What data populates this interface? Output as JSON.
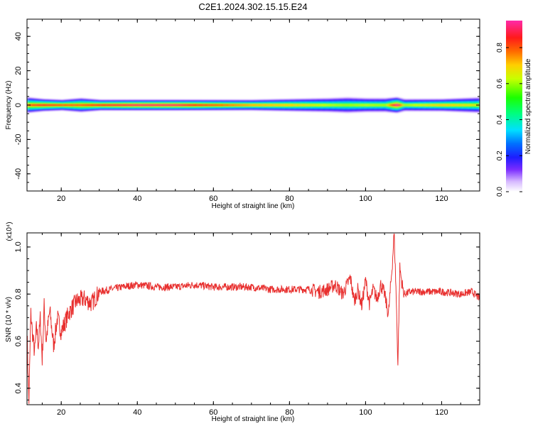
{
  "title": "C2E1.2024.302.15.15.E24",
  "colors": {
    "snr_line": "#e8302f",
    "axis": "#000000"
  },
  "chart_data": [
    {
      "type": "heatmap",
      "title": "C2E1.2024.302.15.15.E24",
      "xlabel": "Height of straight line (km)",
      "ylabel": "Frequency (Hz)",
      "xlim": [
        11,
        130
      ],
      "ylim": [
        -50,
        50
      ],
      "x_ticks": [
        "20",
        "40",
        "60",
        "80",
        "100",
        "120"
      ],
      "x_tick_values": [
        20,
        40,
        60,
        80,
        100,
        120
      ],
      "y_ticks": [
        "40",
        "20",
        "0",
        "-20",
        "-40"
      ],
      "y_tick_values": [
        40,
        20,
        0,
        -20,
        -40
      ],
      "colorbar": {
        "label": "Normalized spectral amplitude",
        "range": [
          0,
          0.95
        ],
        "ticks": [
          "0.0",
          "0.2",
          "0.4",
          "0.6",
          "0.8"
        ],
        "tick_values": [
          0.0,
          0.2,
          0.4,
          0.6,
          0.8
        ],
        "colormap": "rainbow (white-violet-blue-cyan-green-yellow-orange-red-magenta)"
      },
      "band": {
        "center_frequency": 0,
        "halfwidth_hz": [
          [
            11,
            5
          ],
          [
            15,
            4
          ],
          [
            20,
            3.5
          ],
          [
            25,
            4.5
          ],
          [
            30,
            3.5
          ],
          [
            40,
            3.5
          ],
          [
            50,
            3.5
          ],
          [
            60,
            3.5
          ],
          [
            70,
            3.5
          ],
          [
            80,
            4
          ],
          [
            90,
            4.5
          ],
          [
            95,
            5
          ],
          [
            100,
            4.5
          ],
          [
            105,
            4.5
          ],
          [
            108,
            5
          ],
          [
            110,
            4
          ],
          [
            120,
            4
          ],
          [
            130,
            5
          ]
        ],
        "peak_amplitude": [
          [
            11,
            0.8
          ],
          [
            15,
            0.85
          ],
          [
            20,
            0.8
          ],
          [
            25,
            0.8
          ],
          [
            30,
            0.85
          ],
          [
            40,
            0.9
          ],
          [
            50,
            0.9
          ],
          [
            60,
            0.8
          ],
          [
            70,
            0.72
          ],
          [
            80,
            0.7
          ],
          [
            90,
            0.62
          ],
          [
            95,
            0.6
          ],
          [
            100,
            0.62
          ],
          [
            105,
            0.6
          ],
          [
            108,
            0.95
          ],
          [
            110,
            0.6
          ],
          [
            120,
            0.7
          ],
          [
            130,
            0.65
          ]
        ]
      }
    },
    {
      "type": "line",
      "xlabel": "Height of straight line (km)",
      "ylabel": "SNR (10 * v/v)",
      "y_multiplier": "(x10⁴)",
      "xlim": [
        11,
        130
      ],
      "ylim": [
        0.33,
        1.06
      ],
      "x_ticks": [
        "20",
        "40",
        "60",
        "80",
        "100",
        "120"
      ],
      "x_tick_values": [
        20,
        40,
        60,
        80,
        100,
        120
      ],
      "y_ticks": [
        "1.0",
        "0.8",
        "0.6",
        "0.4"
      ],
      "y_tick_values": [
        1.0,
        0.8,
        0.6,
        0.4
      ],
      "series": [
        {
          "x": [
            11,
            11.5,
            12,
            12.5,
            13,
            13.5,
            14,
            14.5,
            15,
            15.5,
            16,
            17,
            18,
            19,
            20,
            22,
            24,
            26,
            28,
            30,
            33,
            36,
            40,
            45,
            50,
            55,
            60,
            65,
            70,
            75,
            80,
            85,
            88,
            90,
            92,
            94,
            96,
            97,
            98,
            99,
            100,
            101,
            102,
            103,
            104,
            105,
            106,
            107,
            107.5,
            108,
            108.5,
            109,
            110,
            112,
            115,
            120,
            125,
            128,
            130
          ],
          "values": [
            0.64,
            0.34,
            0.72,
            0.62,
            0.55,
            0.66,
            0.58,
            0.7,
            0.52,
            0.75,
            0.6,
            0.73,
            0.58,
            0.7,
            0.64,
            0.72,
            0.77,
            0.78,
            0.76,
            0.81,
            0.82,
            0.83,
            0.84,
            0.83,
            0.83,
            0.84,
            0.83,
            0.83,
            0.83,
            0.82,
            0.82,
            0.82,
            0.81,
            0.82,
            0.84,
            0.8,
            0.87,
            0.77,
            0.82,
            0.75,
            0.86,
            0.76,
            0.82,
            0.78,
            0.84,
            0.8,
            0.71,
            0.92,
            1.06,
            0.82,
            0.5,
            0.91,
            0.8,
            0.81,
            0.81,
            0.81,
            0.8,
            0.81,
            0.78
          ]
        }
      ]
    }
  ]
}
